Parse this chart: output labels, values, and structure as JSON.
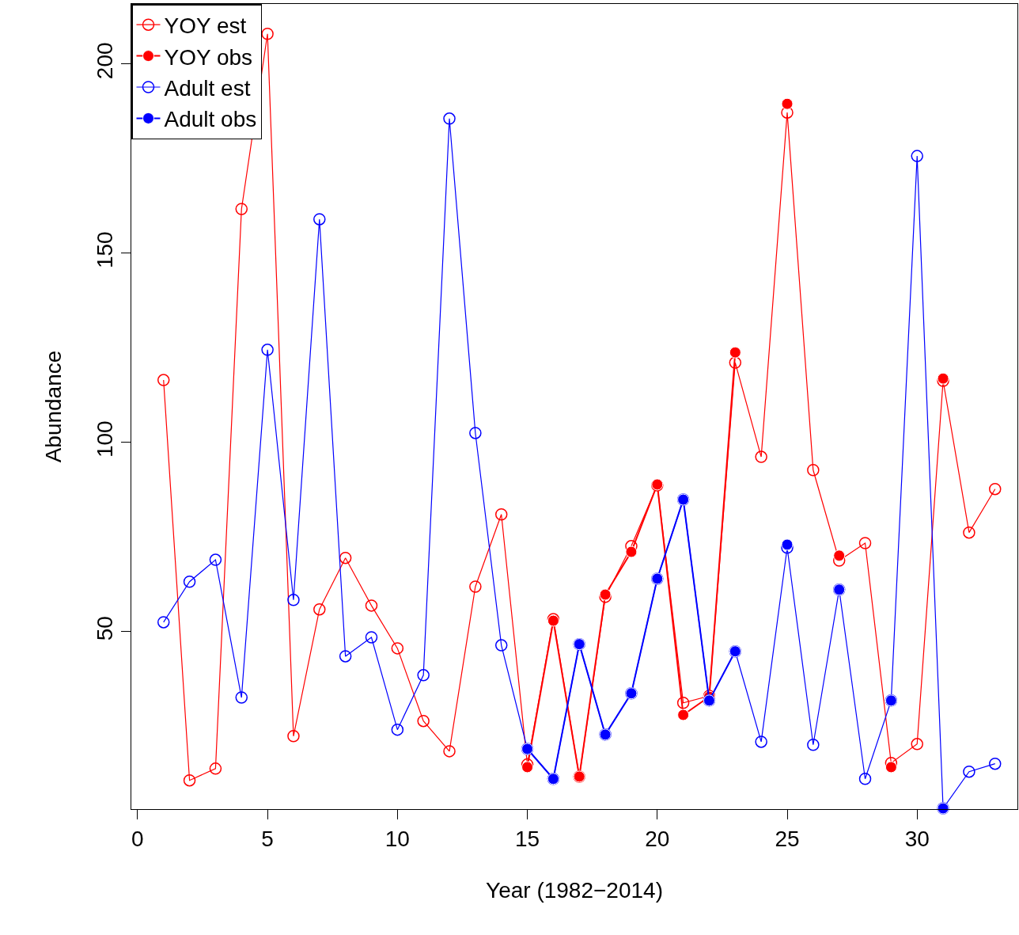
{
  "chart_data": {
    "type": "line",
    "xlabel": "Year (1982−2014)",
    "ylabel": "Abundance",
    "x": [
      1,
      2,
      3,
      4,
      5,
      6,
      7,
      8,
      9,
      10,
      11,
      12,
      13,
      14,
      15,
      16,
      17,
      18,
      19,
      20,
      21,
      22,
      23,
      24,
      25,
      26,
      27,
      28,
      29,
      30,
      31,
      32,
      33
    ],
    "xlim": [
      -0.24,
      33.86
    ],
    "xticks": [
      0,
      5,
      10,
      15,
      20,
      25,
      30
    ],
    "ylim": [
      3.1,
      215.9
    ],
    "yticks": [
      50,
      100,
      150,
      200
    ],
    "grid": false,
    "legend": "top left",
    "series": [
      {
        "name": "YOY est",
        "color": "#ff0000",
        "marker": "circle-open",
        "values": [
          116.5,
          10.7,
          13.8,
          161.7,
          208,
          22.4,
          55.9,
          69.5,
          56.9,
          45.6,
          26.4,
          18.4,
          61.9,
          81.0,
          14.9,
          53.3,
          11.7,
          59.2,
          72.6,
          88.7,
          31.2,
          33,
          121.1,
          96.2,
          187.2,
          92.7,
          68.8,
          73.4,
          15.3,
          20.3,
          116.3,
          76.2,
          87.7
        ]
      },
      {
        "name": "YOY obs",
        "color": "#ff0000",
        "marker": "circle",
        "values": [
          null,
          null,
          null,
          null,
          null,
          null,
          null,
          null,
          null,
          null,
          null,
          null,
          null,
          null,
          14.2,
          52.9,
          11.7,
          59.8,
          71.1,
          88.9,
          28.0,
          32.8,
          123.8,
          null,
          189.5,
          null,
          70.1,
          null,
          14.2,
          null,
          116.9,
          null,
          null
        ]
      },
      {
        "name": "Adult est",
        "color": "#0000ff",
        "marker": "circle-open",
        "values": [
          52.5,
          63.2,
          69.0,
          32.6,
          124.5,
          58.4,
          159.0,
          43.5,
          48.5,
          24.1,
          38.5,
          185.6,
          102.5,
          46.4,
          19.0,
          11.1,
          46.7,
          22.8,
          33.7,
          64.0,
          84.9,
          31.8,
          44.8,
          20.9,
          72.2,
          20.1,
          61.1,
          11.1,
          31.8,
          175.7,
          3.3,
          13.0,
          15.1
        ]
      },
      {
        "name": "Adult obs",
        "color": "#0000ff",
        "marker": "circle",
        "values": [
          null,
          null,
          null,
          null,
          null,
          null,
          null,
          null,
          null,
          null,
          null,
          null,
          null,
          null,
          19.0,
          11.1,
          46.7,
          22.8,
          33.7,
          64.0,
          84.9,
          31.8,
          44.8,
          null,
          73.0,
          null,
          61.1,
          null,
          31.8,
          null,
          3.3,
          null,
          null
        ]
      }
    ]
  }
}
